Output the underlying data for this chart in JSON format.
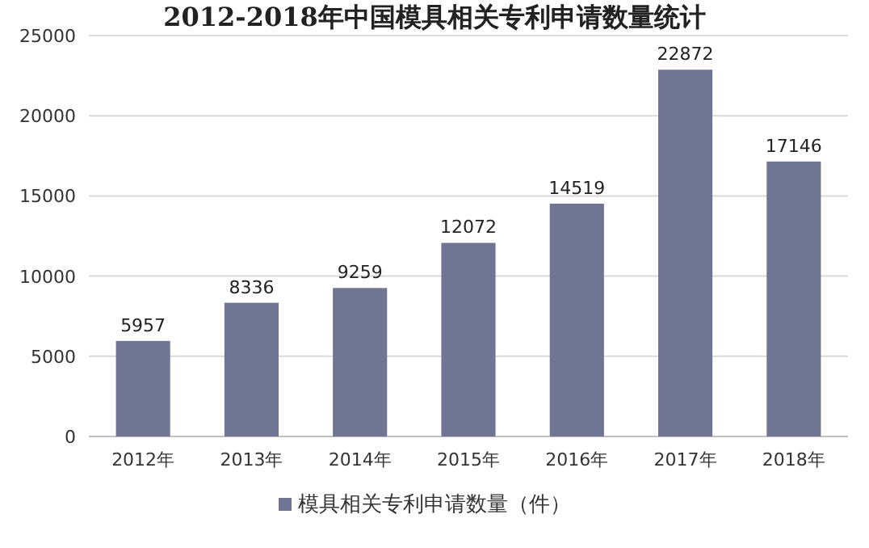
{
  "chart_data": {
    "type": "bar",
    "title": "2012-2018年中国模具相关专利申请数量统计",
    "categories": [
      "2012年",
      "2013年",
      "2014年",
      "2015年",
      "2016年",
      "2017年",
      "2018年"
    ],
    "series": [
      {
        "name": "模具相关专利申请数量（件）",
        "color": "#6f7593",
        "values": [
          5957,
          8336,
          9259,
          12072,
          14519,
          22872,
          17146
        ]
      }
    ],
    "ylim": [
      0,
      25000
    ],
    "yticks": [
      0,
      5000,
      10000,
      15000,
      20000,
      25000
    ],
    "grid": "y",
    "legend": "bottom",
    "data_labels": true
  }
}
